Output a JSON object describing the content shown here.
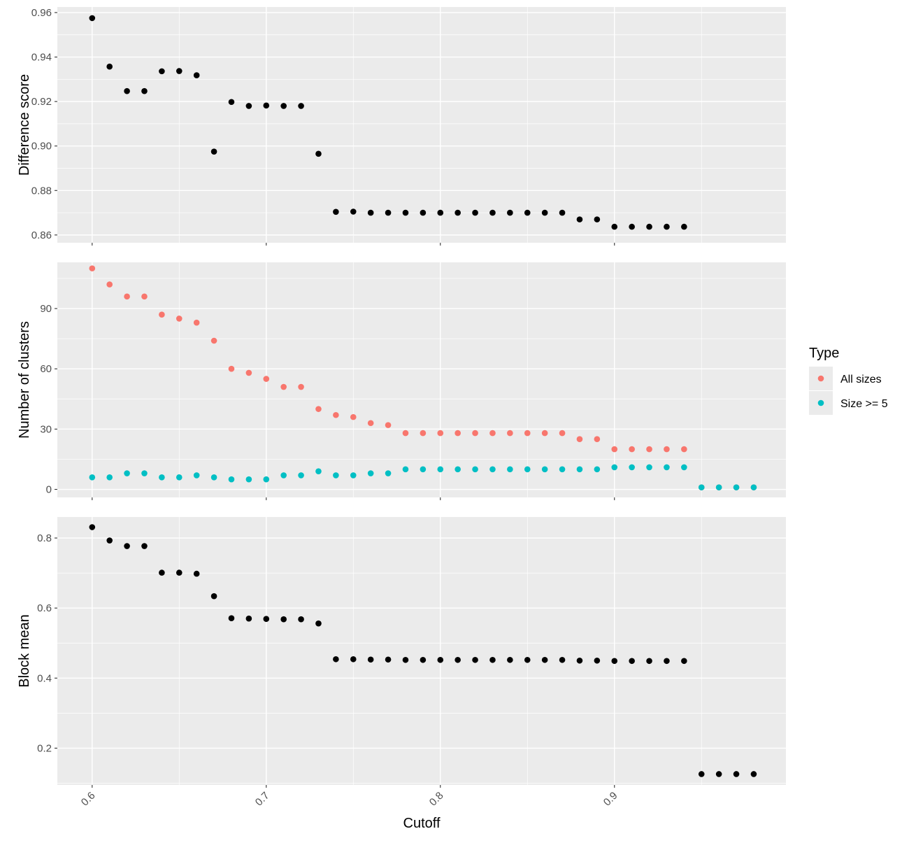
{
  "chart_data": {
    "type": "scatter",
    "facet_layout": "stacked-vertical",
    "shared_x": true,
    "xlabel": "Cutoff",
    "xticks": [
      0.6,
      0.7,
      0.8,
      0.9
    ],
    "xtick_labels": [
      "0.6",
      "0.7",
      "0.8",
      "0.9"
    ],
    "xlim": [
      0.58,
      0.9985
    ],
    "xtick_label_rotation_deg": -45,
    "grid": true,
    "panel_background": "#EBEBEB",
    "grid_color": "#FFFFFF",
    "panels": [
      {
        "ylabel": "Difference score",
        "ylim": [
          0.8565,
          0.9625
        ],
        "yticks": [
          0.86,
          0.88,
          0.9,
          0.92,
          0.94,
          0.96
        ],
        "ytick_labels": [
          "0.86",
          "0.88",
          "0.90",
          "0.92",
          "0.94",
          "0.96"
        ],
        "series": [
          {
            "color": "#000000",
            "x": [
              0.6,
              0.61,
              0.62,
              0.63,
              0.64,
              0.65,
              0.66,
              0.67,
              0.68,
              0.69,
              0.7,
              0.71,
              0.72,
              0.73,
              0.74,
              0.75,
              0.76,
              0.77,
              0.78,
              0.79,
              0.8,
              0.81,
              0.82,
              0.83,
              0.84,
              0.85,
              0.86,
              0.87,
              0.88,
              0.89,
              0.9,
              0.91,
              0.92,
              0.93,
              0.94
            ],
            "y": [
              0.9575,
              0.9357,
              0.9247,
              0.9247,
              0.9336,
              0.9337,
              0.9318,
              0.8975,
              0.9198,
              0.918,
              0.9182,
              0.918,
              0.918,
              0.8965,
              0.8704,
              0.8705,
              0.87,
              0.87,
              0.87,
              0.87,
              0.87,
              0.87,
              0.87,
              0.87,
              0.87,
              0.87,
              0.87,
              0.87,
              0.867,
              0.867,
              0.8637,
              0.8637,
              0.8637,
              0.8637,
              0.8637
            ]
          }
        ]
      },
      {
        "ylabel": "Number of clusters",
        "ylim": [
          -4,
          113
        ],
        "yticks": [
          0,
          30,
          60,
          90
        ],
        "ytick_labels": [
          "0",
          "30",
          "60",
          "90"
        ],
        "series": [
          {
            "name": "All sizes",
            "color": "#F8766D",
            "x": [
              0.6,
              0.61,
              0.62,
              0.63,
              0.64,
              0.65,
              0.66,
              0.67,
              0.68,
              0.69,
              0.7,
              0.71,
              0.72,
              0.73,
              0.74,
              0.75,
              0.76,
              0.77,
              0.78,
              0.79,
              0.8,
              0.81,
              0.82,
              0.83,
              0.84,
              0.85,
              0.86,
              0.87,
              0.88,
              0.89,
              0.9,
              0.91,
              0.92,
              0.93,
              0.94,
              0.95,
              0.96,
              0.97,
              0.98
            ],
            "y": [
              110,
              102,
              96,
              96,
              87,
              85,
              83,
              74,
              60,
              58,
              55,
              51,
              51,
              40,
              37,
              36,
              33,
              32,
              28,
              28,
              28,
              28,
              28,
              28,
              28,
              28,
              28,
              28,
              25,
              25,
              20,
              20,
              20,
              20,
              20,
              1,
              1,
              1,
              1
            ]
          },
          {
            "name": "Size >= 5",
            "color": "#00BFC4",
            "x": [
              0.6,
              0.61,
              0.62,
              0.63,
              0.64,
              0.65,
              0.66,
              0.67,
              0.68,
              0.69,
              0.7,
              0.71,
              0.72,
              0.73,
              0.74,
              0.75,
              0.76,
              0.77,
              0.78,
              0.79,
              0.8,
              0.81,
              0.82,
              0.83,
              0.84,
              0.85,
              0.86,
              0.87,
              0.88,
              0.89,
              0.9,
              0.91,
              0.92,
              0.93,
              0.94,
              0.95,
              0.96,
              0.97,
              0.98
            ],
            "y": [
              6,
              6,
              8,
              8,
              6,
              6,
              7,
              6,
              5,
              5,
              5,
              7,
              7,
              9,
              7,
              7,
              8,
              8,
              10,
              10,
              10,
              10,
              10,
              10,
              10,
              10,
              10,
              10,
              10,
              10,
              11,
              11,
              11,
              11,
              11,
              1,
              1,
              1,
              1
            ]
          }
        ]
      },
      {
        "ylabel": "Block mean",
        "ylim": [
          0.095,
          0.86
        ],
        "yticks": [
          0.2,
          0.4,
          0.6,
          0.8
        ],
        "ytick_labels": [
          "0.2",
          "0.4",
          "0.6",
          "0.8"
        ],
        "series": [
          {
            "color": "#000000",
            "x": [
              0.6,
              0.61,
              0.62,
              0.63,
              0.64,
              0.65,
              0.66,
              0.67,
              0.68,
              0.69,
              0.7,
              0.71,
              0.72,
              0.73,
              0.74,
              0.75,
              0.76,
              0.77,
              0.78,
              0.79,
              0.8,
              0.81,
              0.82,
              0.83,
              0.84,
              0.85,
              0.86,
              0.87,
              0.88,
              0.89,
              0.9,
              0.91,
              0.92,
              0.93,
              0.94,
              0.95,
              0.96,
              0.97,
              0.98
            ],
            "y": [
              0.831,
              0.793,
              0.777,
              0.777,
              0.701,
              0.701,
              0.698,
              0.634,
              0.571,
              0.57,
              0.569,
              0.568,
              0.568,
              0.556,
              0.454,
              0.454,
              0.453,
              0.453,
              0.452,
              0.452,
              0.452,
              0.452,
              0.452,
              0.452,
              0.452,
              0.452,
              0.452,
              0.452,
              0.45,
              0.45,
              0.449,
              0.449,
              0.449,
              0.449,
              0.449,
              0.126,
              0.126,
              0.126,
              0.126
            ]
          }
        ]
      }
    ],
    "legend": {
      "title": "Type",
      "placement": "right",
      "entries": [
        {
          "label": "All sizes",
          "color": "#F8766D"
        },
        {
          "label": "Size >= 5",
          "color": "#00BFC4"
        }
      ]
    }
  }
}
